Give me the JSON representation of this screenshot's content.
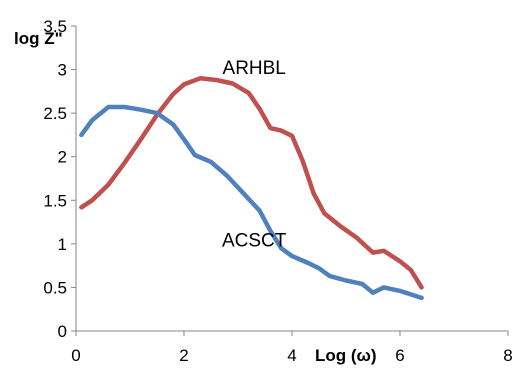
{
  "chart_data": {
    "type": "line",
    "xlabel": "Log (ω)",
    "ylabel": "log Z\"",
    "xlim": [
      0,
      8
    ],
    "ylim": [
      0,
      3.5
    ],
    "x_ticks": [
      "0",
      "2",
      "4",
      "6",
      "8"
    ],
    "y_ticks": [
      "0",
      "0.5",
      "1",
      "1.5",
      "2",
      "2.5",
      "3",
      "3.5"
    ],
    "grid": false,
    "legend": "none (series labeled inline)",
    "series": [
      {
        "name": "ARHBL",
        "color": "#C0504D",
        "points": [
          [
            0.1,
            1.42
          ],
          [
            0.3,
            1.5
          ],
          [
            0.6,
            1.68
          ],
          [
            0.9,
            1.93
          ],
          [
            1.2,
            2.2
          ],
          [
            1.5,
            2.48
          ],
          [
            1.8,
            2.72
          ],
          [
            2.0,
            2.83
          ],
          [
            2.3,
            2.9
          ],
          [
            2.6,
            2.88
          ],
          [
            2.9,
            2.84
          ],
          [
            3.2,
            2.73
          ],
          [
            3.4,
            2.55
          ],
          [
            3.6,
            2.33
          ],
          [
            3.8,
            2.3
          ],
          [
            4.0,
            2.24
          ],
          [
            4.2,
            1.95
          ],
          [
            4.4,
            1.58
          ],
          [
            4.6,
            1.35
          ],
          [
            4.9,
            1.2
          ],
          [
            5.2,
            1.07
          ],
          [
            5.5,
            0.9
          ],
          [
            5.7,
            0.92
          ],
          [
            6.0,
            0.8
          ],
          [
            6.2,
            0.7
          ],
          [
            6.4,
            0.5
          ]
        ]
      },
      {
        "name": "ACSCT",
        "color": "#4F81BD",
        "points": [
          [
            0.1,
            2.25
          ],
          [
            0.3,
            2.42
          ],
          [
            0.6,
            2.57
          ],
          [
            0.9,
            2.57
          ],
          [
            1.2,
            2.54
          ],
          [
            1.5,
            2.5
          ],
          [
            1.8,
            2.37
          ],
          [
            2.0,
            2.2
          ],
          [
            2.2,
            2.02
          ],
          [
            2.5,
            1.94
          ],
          [
            2.8,
            1.78
          ],
          [
            3.1,
            1.58
          ],
          [
            3.4,
            1.38
          ],
          [
            3.6,
            1.15
          ],
          [
            3.8,
            0.95
          ],
          [
            4.0,
            0.86
          ],
          [
            4.3,
            0.78
          ],
          [
            4.5,
            0.72
          ],
          [
            4.7,
            0.63
          ],
          [
            5.0,
            0.58
          ],
          [
            5.3,
            0.54
          ],
          [
            5.5,
            0.44
          ],
          [
            5.7,
            0.5
          ],
          [
            6.0,
            0.46
          ],
          [
            6.4,
            0.38
          ]
        ]
      }
    ]
  }
}
